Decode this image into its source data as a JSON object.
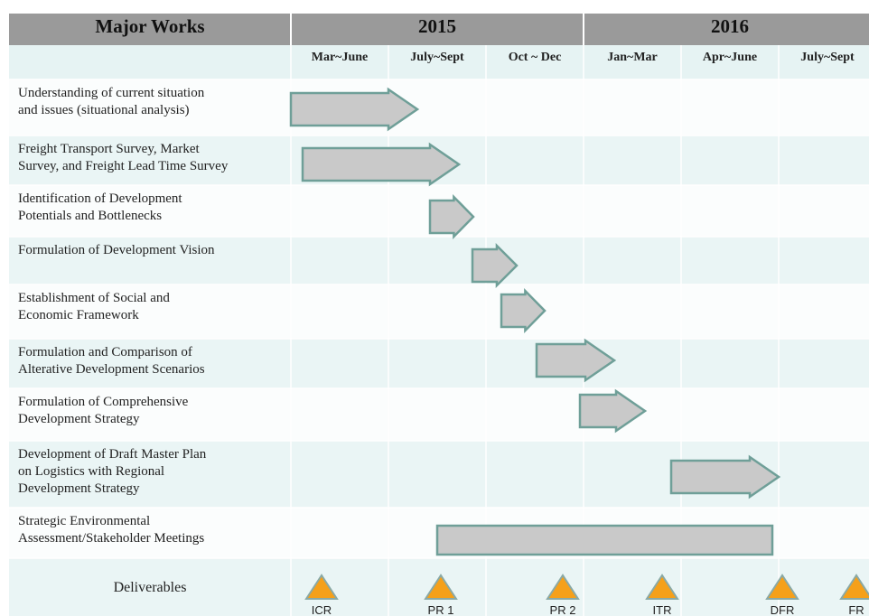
{
  "header": {
    "title": "Major Works",
    "years": [
      "2015",
      "2016"
    ]
  },
  "periods": [
    "Mar~June",
    "July~Sept",
    "Oct ~ Dec",
    "Jan~Mar",
    "Apr~June",
    "July~Sept"
  ],
  "tasks": [
    "Understanding of current situation\nand issues (situational analysis)",
    "Freight Transport Survey, Market\nSurvey, and Freight Lead Time Survey",
    "Identification of Development\nPotentials and Bottlenecks",
    "Formulation of Development Vision",
    "Establishment of Social and\nEconomic Framework",
    "Formulation and Comparison of\nAlterative Development Scenarios",
    "Formulation of Comprehensive\nDevelopment Strategy",
    "Development of Draft Master Plan\non Logistics with Regional\nDevelopment Strategy",
    "Strategic Environmental\nAssessment/Stakeholder Meetings"
  ],
  "deliverables": {
    "label": "Deliverables",
    "items": [
      "ICR",
      "PR 1",
      "PR 2",
      "ITR",
      "DFR",
      "FR"
    ]
  }
}
